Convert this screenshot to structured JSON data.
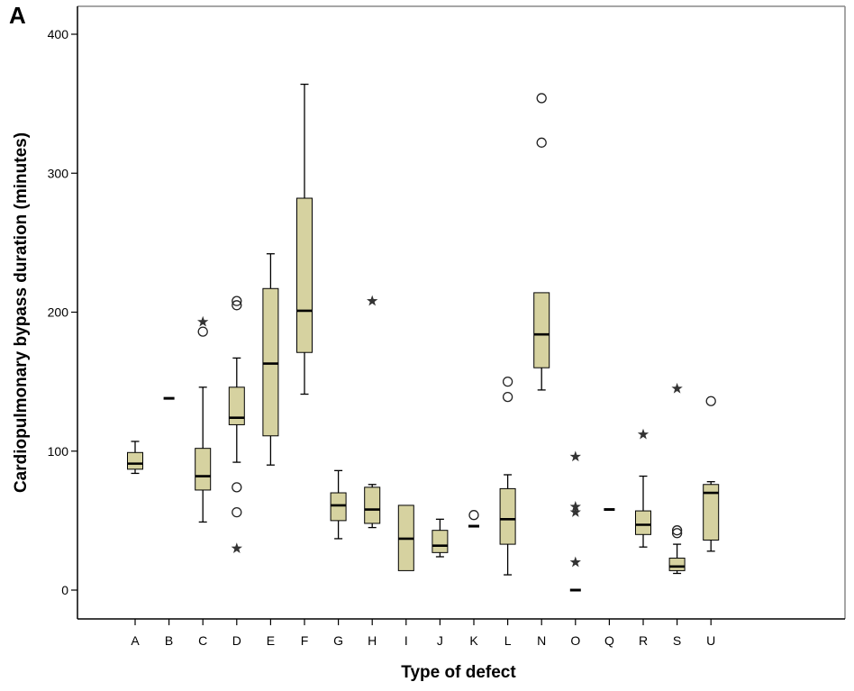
{
  "panel_label": "A",
  "chart_data": {
    "type": "boxplot",
    "title": "",
    "xlabel": "Type of defect",
    "ylabel": "Cardiopulmonary bypass duration (minutes)",
    "ylim": [
      -20,
      420
    ],
    "yticks": [
      0,
      100,
      200,
      300,
      400
    ],
    "grid": false,
    "legend": "none",
    "box_color": "#d6d2a0",
    "line_color": "#000000",
    "categories": [
      "A",
      "B",
      "C",
      "D",
      "E",
      "F",
      "G",
      "H",
      "I",
      "J",
      "K",
      "L",
      "N",
      "O",
      "Q",
      "R",
      "S",
      "U"
    ],
    "boxes": [
      {
        "category": "A",
        "whisker_low": 84,
        "q1": 87,
        "median": 91,
        "q3": 99,
        "whisker_high": 107,
        "outliers": [],
        "extremes": []
      },
      {
        "category": "B",
        "whisker_low": 138,
        "q1": 138,
        "median": 138,
        "q3": 138,
        "whisker_high": 138,
        "outliers": [],
        "extremes": []
      },
      {
        "category": "C",
        "whisker_low": 49,
        "q1": 72,
        "median": 82,
        "q3": 102,
        "whisker_high": 146,
        "outliers": [
          186
        ],
        "extremes": [
          193
        ]
      },
      {
        "category": "D",
        "whisker_low": 92,
        "q1": 119,
        "median": 124,
        "q3": 146,
        "whisker_high": 167,
        "outliers": [
          208,
          205,
          74,
          56
        ],
        "extremes": [
          30
        ]
      },
      {
        "category": "E",
        "whisker_low": 90,
        "q1": 111,
        "median": 163,
        "q3": 217,
        "whisker_high": 242,
        "outliers": [],
        "extremes": []
      },
      {
        "category": "F",
        "whisker_low": 141,
        "q1": 171,
        "median": 201,
        "q3": 282,
        "whisker_high": 364,
        "outliers": [],
        "extremes": []
      },
      {
        "category": "G",
        "whisker_low": 37,
        "q1": 50,
        "median": 61,
        "q3": 70,
        "whisker_high": 86,
        "outliers": [],
        "extremes": []
      },
      {
        "category": "H",
        "whisker_low": 45,
        "q1": 48,
        "median": 58,
        "q3": 74,
        "whisker_high": 76,
        "outliers": [],
        "extremes": [
          208
        ]
      },
      {
        "category": "I",
        "whisker_low": 14,
        "q1": 14,
        "median": 37,
        "q3": 61,
        "whisker_high": 61,
        "outliers": [],
        "extremes": []
      },
      {
        "category": "J",
        "whisker_low": 24,
        "q1": 27,
        "median": 32,
        "q3": 43,
        "whisker_high": 51,
        "outliers": [],
        "extremes": []
      },
      {
        "category": "K",
        "whisker_low": 46,
        "q1": 46,
        "median": 46,
        "q3": 46,
        "whisker_high": 46,
        "outliers": [
          54
        ],
        "extremes": []
      },
      {
        "category": "L",
        "whisker_low": 11,
        "q1": 33,
        "median": 51,
        "q3": 73,
        "whisker_high": 83,
        "outliers": [
          150,
          139
        ],
        "extremes": []
      },
      {
        "category": "N",
        "whisker_low": 144,
        "q1": 160,
        "median": 184,
        "q3": 214,
        "whisker_high": 214,
        "outliers": [
          354,
          322
        ],
        "extremes": []
      },
      {
        "category": "O",
        "whisker_low": 0,
        "q1": 0,
        "median": 0,
        "q3": 0,
        "whisker_high": 0,
        "outliers": [],
        "extremes": [
          96,
          60,
          56,
          20
        ]
      },
      {
        "category": "Q",
        "whisker_low": 58,
        "q1": 58,
        "median": 58,
        "q3": 58,
        "whisker_high": 58,
        "outliers": [],
        "extremes": []
      },
      {
        "category": "R",
        "whisker_low": 31,
        "q1": 40,
        "median": 47,
        "q3": 57,
        "whisker_high": 82,
        "outliers": [],
        "extremes": [
          112
        ]
      },
      {
        "category": "S",
        "whisker_low": 12,
        "q1": 14,
        "median": 17,
        "q3": 23,
        "whisker_high": 33,
        "outliers": [
          43,
          41
        ],
        "extremes": [
          145
        ]
      },
      {
        "category": "U",
        "whisker_low": 28,
        "q1": 36,
        "median": 70,
        "q3": 76,
        "whisker_high": 78,
        "outliers": [
          136
        ],
        "extremes": []
      }
    ]
  }
}
